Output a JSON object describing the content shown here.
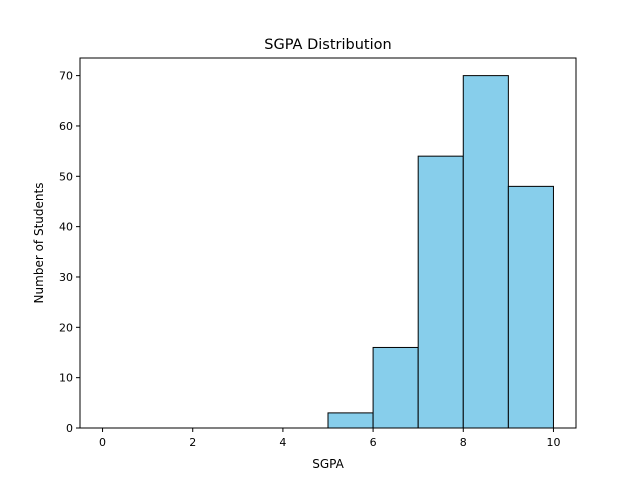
{
  "chart_data": {
    "type": "bar",
    "title": "SGPA Distribution",
    "xlabel": "SGPA",
    "ylabel": "Number of Students",
    "bin_edges": [
      0,
      1,
      2,
      3,
      4,
      5,
      6,
      7,
      8,
      9,
      10
    ],
    "values": [
      0,
      0,
      0,
      0,
      0,
      3,
      16,
      54,
      70,
      48
    ],
    "xlim": [
      -0.5,
      10.5
    ],
    "ylim": [
      0,
      73.5
    ],
    "xticks": [
      0,
      2,
      4,
      6,
      8,
      10
    ],
    "yticks": [
      0,
      10,
      20,
      30,
      40,
      50,
      60,
      70
    ],
    "bar_color": "#87CEEB",
    "edge_color": "#000000",
    "grid": false
  }
}
